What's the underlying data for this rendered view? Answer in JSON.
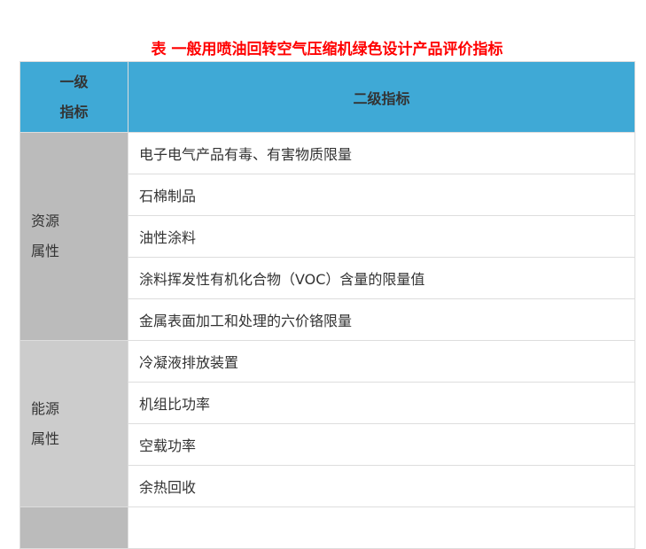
{
  "title": "表  一般用喷油回转空气压缩机绿色设计产品评价指标",
  "header": {
    "level1_line1": "一级",
    "level1_line2": "指标",
    "level2": "二级指标"
  },
  "groups": [
    {
      "line1": "资源",
      "line2": "属性",
      "items": [
        "电子电气产品有毒、有害物质限量",
        "石棉制品",
        "油性涂料",
        "涂料挥发性有机化合物（VOC）含量的限量值",
        "金属表面加工和处理的六价铬限量"
      ]
    },
    {
      "line1": "能源",
      "line2": "属性",
      "items": [
        "冷凝液排放装置",
        "机组比功率",
        "空载功率",
        "余热回收"
      ]
    }
  ],
  "colors": {
    "title": "#ff0000",
    "header_bg": "#3fa9d6",
    "group1_bg": "#bbbbbb",
    "group2_bg": "#cccccc"
  }
}
